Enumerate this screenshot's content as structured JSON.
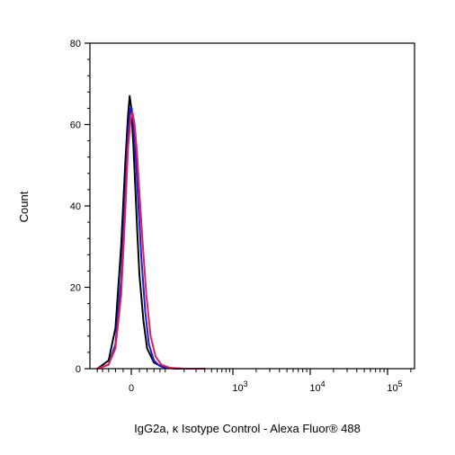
{
  "chart_data": {
    "type": "line",
    "title": "",
    "xlabel": "IgG2a, κ Isotype Control - Alexa Fluor® 488",
    "ylabel": "Count",
    "x_scale": "biexponential",
    "xlim": [
      -100,
      200000
    ],
    "ylim": [
      0,
      80
    ],
    "grid": false,
    "legend": "none",
    "y_ticks": [
      {
        "value": 0,
        "label": "0"
      },
      {
        "value": 20,
        "label": "20"
      },
      {
        "value": 40,
        "label": "40"
      },
      {
        "value": 60,
        "label": "60"
      },
      {
        "value": 80,
        "label": "80"
      }
    ],
    "x_ticks": [
      {
        "value": 0,
        "label": "0",
        "exp": ""
      },
      {
        "value": 1000,
        "label": "10",
        "exp": "3"
      },
      {
        "value": 10000,
        "label": "10",
        "exp": "4"
      },
      {
        "value": 100000,
        "label": "10",
        "exp": "5"
      }
    ],
    "series": [
      {
        "color": "#000000",
        "x": [
          -100,
          -60,
          -40,
          -25,
          -15,
          -8,
          -4,
          0,
          5,
          10,
          15,
          20,
          30,
          40,
          60,
          90,
          150,
          300
        ],
        "y": [
          0,
          2,
          10,
          30,
          50,
          62,
          67,
          64,
          55,
          44,
          33,
          23,
          12,
          5,
          1.5,
          0.4,
          0,
          0
        ]
      },
      {
        "color": "#1f1fd6",
        "x": [
          -100,
          -60,
          -40,
          -25,
          -15,
          -8,
          -3,
          1,
          6,
          12,
          18,
          25,
          35,
          45,
          60,
          80,
          120,
          200,
          400
        ],
        "y": [
          0,
          1,
          6,
          22,
          43,
          57,
          64,
          64,
          59,
          50,
          39,
          27,
          14,
          6,
          2,
          0.6,
          0.1,
          0,
          0
        ]
      },
      {
        "color": "#e0205a",
        "x": [
          -100,
          -60,
          -40,
          -25,
          -15,
          -8,
          -2,
          3,
          8,
          14,
          20,
          28,
          38,
          50,
          65,
          85,
          120,
          200,
          400
        ],
        "y": [
          0,
          1,
          5,
          18,
          38,
          54,
          61,
          63,
          60,
          53,
          43,
          31,
          18,
          8,
          3,
          1,
          0.2,
          0,
          0
        ]
      }
    ]
  }
}
